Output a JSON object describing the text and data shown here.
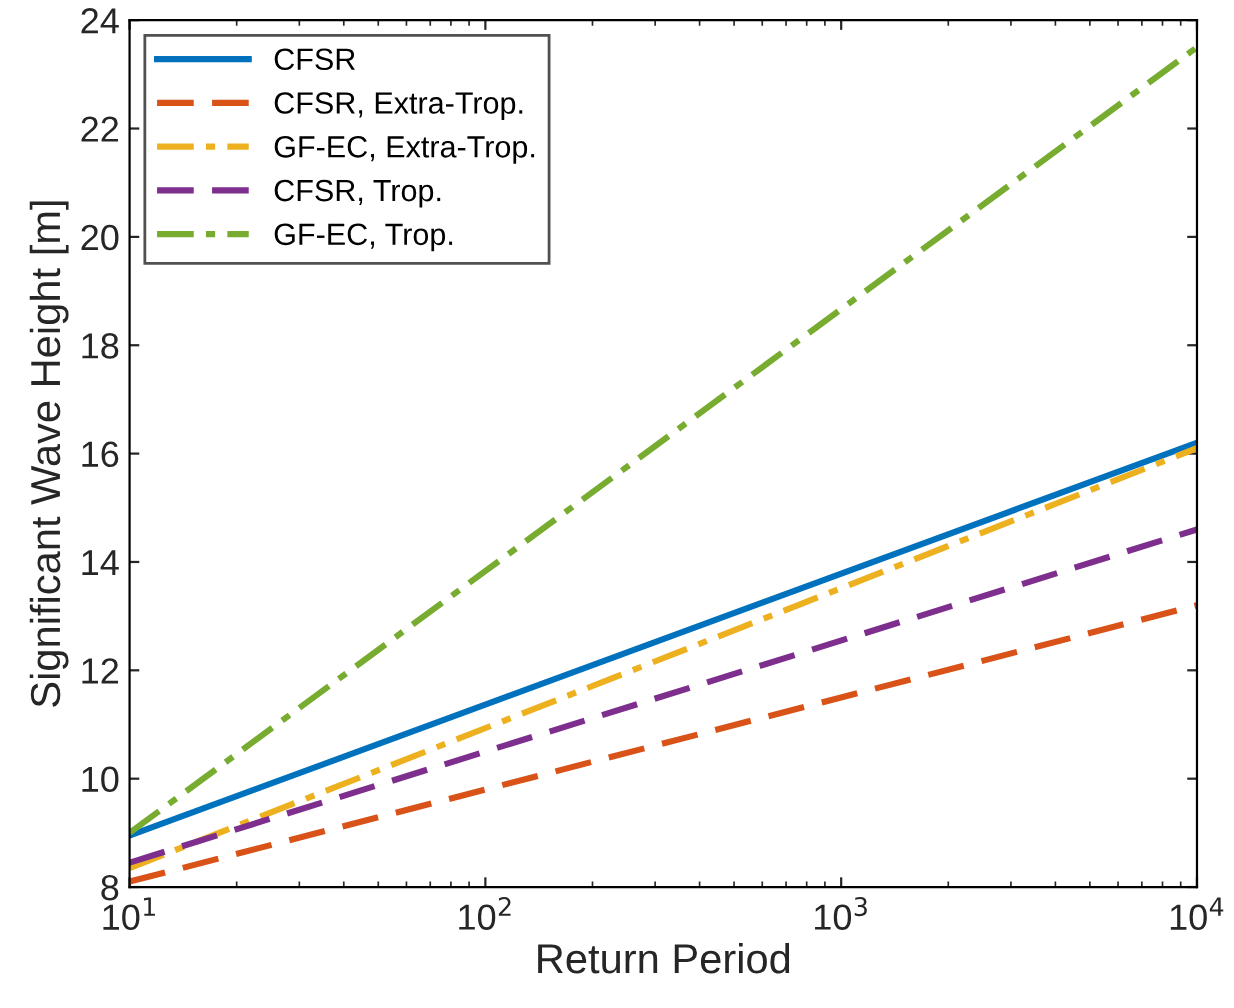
{
  "chart_data": {
    "type": "line",
    "xlabel": "Return Period",
    "ylabel": "Significant Wave Height [m]",
    "log": "x",
    "xlim": [
      10,
      10000
    ],
    "xticks": [
      {
        "value": 10,
        "label": "10$^{1}$"
      },
      {
        "value": 100,
        "label": "10$^{2}$"
      },
      {
        "value": 1000,
        "label": "10$^{3}$"
      },
      {
        "value": 10000,
        "label": "10$^{4}$"
      }
    ],
    "ylim": [
      8,
      24
    ],
    "yticks": [
      8,
      10,
      12,
      14,
      16,
      18,
      20,
      22,
      24
    ],
    "grid": false,
    "legend": "top left",
    "x": [
      10,
      10000
    ],
    "series": [
      {
        "name": "CFSR",
        "color": "#0072bd",
        "values": [
          8.95,
          16.2
        ],
        "line_style": "solid"
      },
      {
        "name": "CFSR, Extra-Trop.",
        "color": "#d95319",
        "values": [
          8.1,
          13.2
        ],
        "line_style": "dashed"
      },
      {
        "name": "GF-EC, Extra-Trop.",
        "color": "#edb120",
        "values": [
          8.35,
          16.1
        ],
        "line_style": "dashdot"
      },
      {
        "name": "CFSR, Trop.",
        "color": "#7e2f8e",
        "values": [
          8.45,
          14.6
        ],
        "line_style": "dashed"
      },
      {
        "name": "GF-EC, Trop.",
        "color": "#77ac30",
        "values": [
          9.0,
          23.5
        ],
        "line_style": "dashdot"
      }
    ]
  }
}
